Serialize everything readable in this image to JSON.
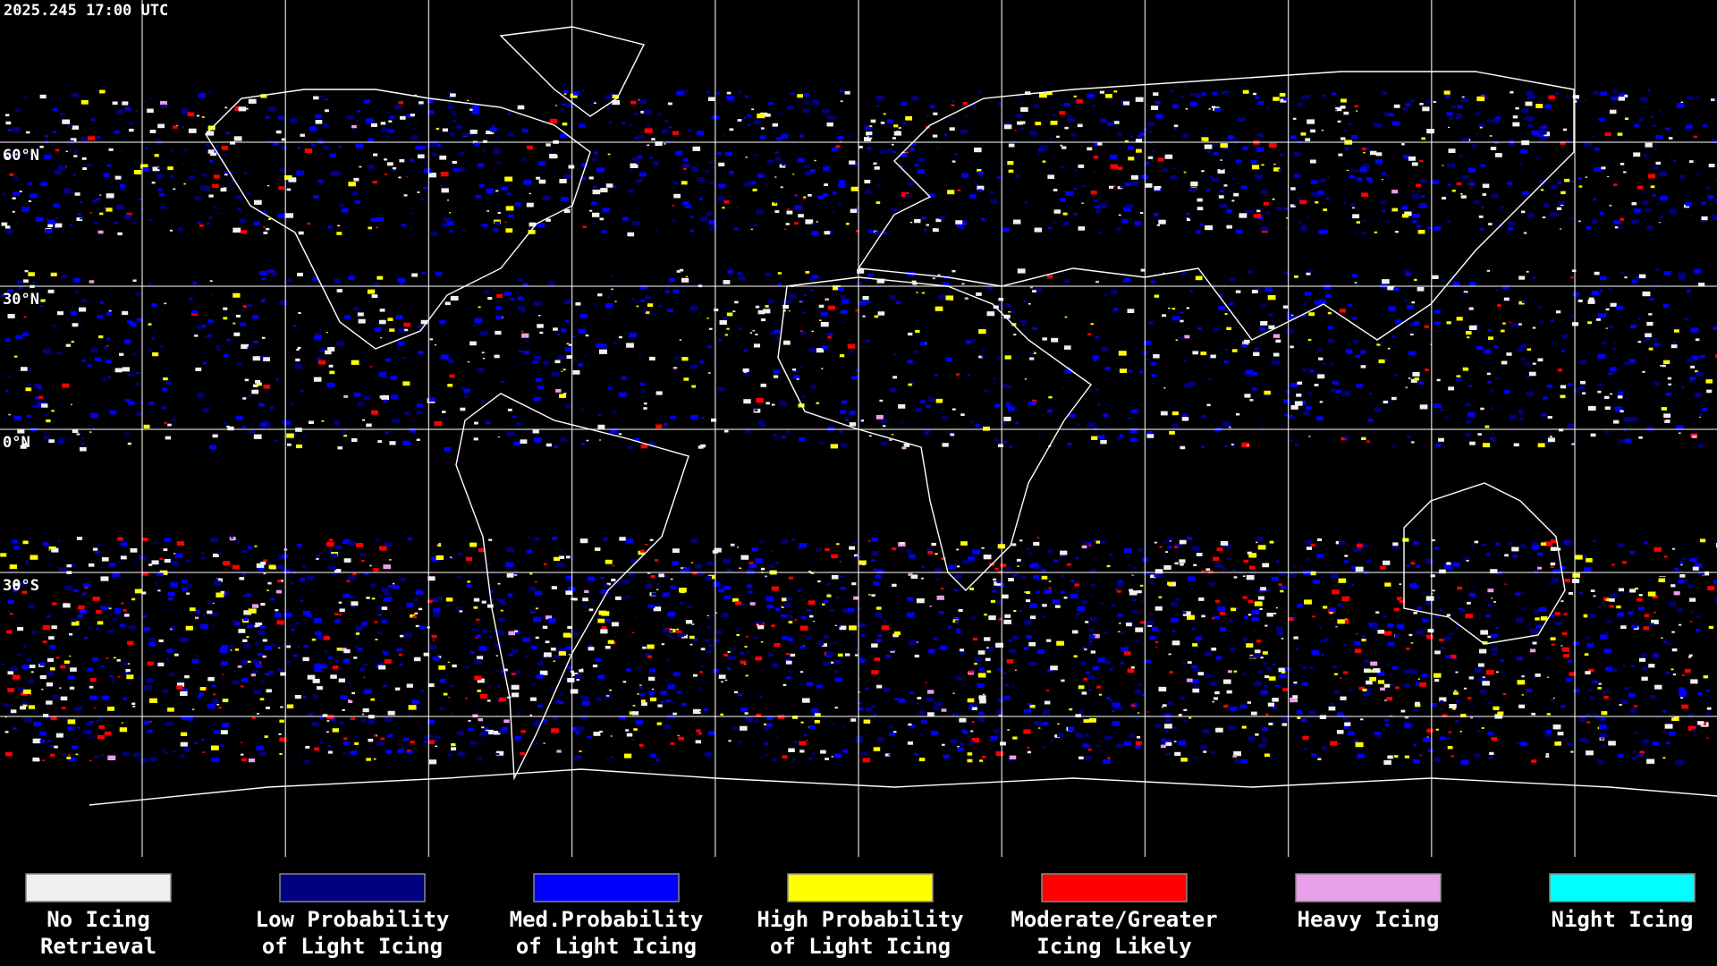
{
  "header": {
    "timestamp": "2025.245 17:00 UTC"
  },
  "map": {
    "latitude_labels": [
      "60°N",
      "30°N",
      "0°N",
      "30°S"
    ]
  },
  "legend": {
    "items": [
      {
        "label": [
          "No Icing",
          "Retrieval"
        ],
        "color": "#f0f0f0"
      },
      {
        "label": [
          "Low Probability",
          "of Light Icing"
        ],
        "color": "#000080"
      },
      {
        "label": [
          "Med.Probability",
          "of Light Icing"
        ],
        "color": "#0000ff"
      },
      {
        "label": [
          "High Probability",
          "of Light Icing"
        ],
        "color": "#ffff00"
      },
      {
        "label": [
          "Moderate/Greater",
          "Icing Likely"
        ],
        "color": "#ff0000"
      },
      {
        "label": [
          "Heavy Icing"
        ],
        "color": "#e8a0e8"
      },
      {
        "label": [
          "Night Icing"
        ],
        "color": "#00ffff"
      }
    ]
  }
}
